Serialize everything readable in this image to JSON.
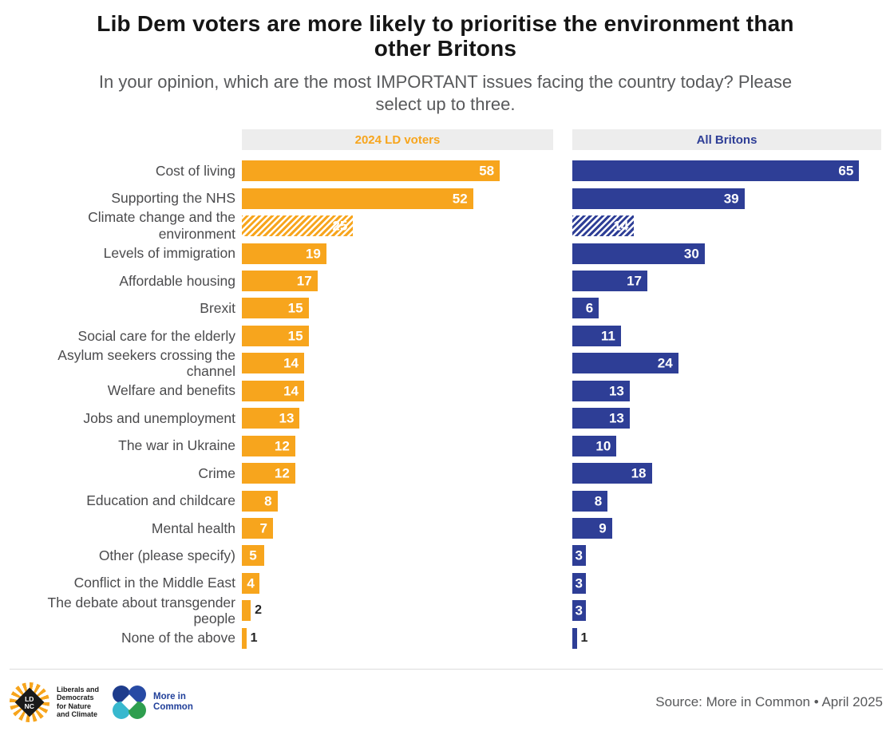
{
  "title": "Lib Dem voters are more likely to prioritise the environment than\nother Britons",
  "subtitle": "In your opinion, which are the most IMPORTANT issues facing the country today? Please\nselect up to three.",
  "columns": {
    "left": "2024 LD voters",
    "right": "All Britons"
  },
  "colors": {
    "orange": "#F7A51D",
    "blue": "#2E3E96",
    "band_bg": "#EDEDED",
    "hatch_white": "#ffffff"
  },
  "chart_data": {
    "type": "bar",
    "orientation": "horizontal",
    "title": "Lib Dem voters are more likely to prioritise the environment than other Britons",
    "subtitle": "In your opinion, which are the most IMPORTANT issues facing the country today? Please select up to three.",
    "xmax": 70,
    "grid": false,
    "legend_position": "top-bands",
    "categories": [
      "Cost of living",
      "Supporting the NHS",
      "Climate change and the\nenvironment",
      "Levels of immigration",
      "Affordable housing",
      "Brexit",
      "Social care for the elderly",
      "Asylum seekers crossing the\nchannel",
      "Welfare and benefits",
      "Jobs and unemployment",
      "The war in Ukraine",
      "Crime",
      "Education and childcare",
      "Mental health",
      "Other (please specify)",
      "Conflict in the Middle East",
      "The debate about transgender\npeople",
      "None of the above"
    ],
    "series": [
      {
        "name": "2024 LD voters",
        "color": "#F7A51D",
        "values": [
          58,
          52,
          25,
          19,
          17,
          15,
          15,
          14,
          14,
          13,
          12,
          12,
          8,
          7,
          5,
          4,
          2,
          1
        ]
      },
      {
        "name": "All Britons",
        "color": "#2E3E96",
        "values": [
          65,
          39,
          14,
          30,
          17,
          6,
          11,
          24,
          13,
          13,
          10,
          18,
          8,
          9,
          3,
          3,
          3,
          1
        ]
      }
    ],
    "hatched_index": 2,
    "hatched_category": "Climate change and the environment"
  },
  "footer": {
    "ldnc_diamond": {
      "line1": "LD",
      "line2": "NC"
    },
    "ldnc_lines": {
      "0": "Liberals and",
      "1": "Democrats",
      "2": "for Nature",
      "3": "and Climate"
    },
    "mic_lines": {
      "0": "More in",
      "1": "Common"
    },
    "source": "Source: More in Common • April 2025"
  }
}
